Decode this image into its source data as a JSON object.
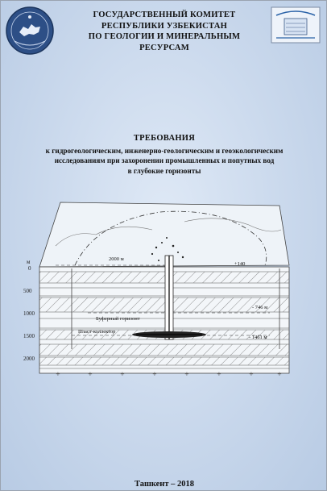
{
  "header": {
    "org_lines": [
      "ГОСУДАРСТВЕННЫЙ КОМИТЕТ",
      "РЕСПУБЛИКИ УЗБЕКИСТАН",
      "ПО ГЕОЛОГИИ И МИНЕРАЛЬНЫМ",
      "РЕСУРСАМ"
    ]
  },
  "document": {
    "title": "ТРЕБОВАНИЯ",
    "subtitle_lines": [
      "к гидрогеологическим, инженерно-геологическим и геоэкологическим",
      "исследованиям при захоронении промышленных и попутных вод",
      "в глубокие горизонты"
    ]
  },
  "figure": {
    "depth_unit": "м",
    "depth_labels": [
      "0",
      "500",
      "1000",
      "1500",
      "2000"
    ],
    "annotations": {
      "radius": "2000 м",
      "elevation": "+140",
      "depth_746": "- 746 м",
      "depth_1461": "- 1461 м",
      "buffer_horizon": "Буферный горизонт",
      "reservoir": "Пласт-коллектор"
    }
  },
  "footer": {
    "city_year": "Ташкент – 2018"
  }
}
